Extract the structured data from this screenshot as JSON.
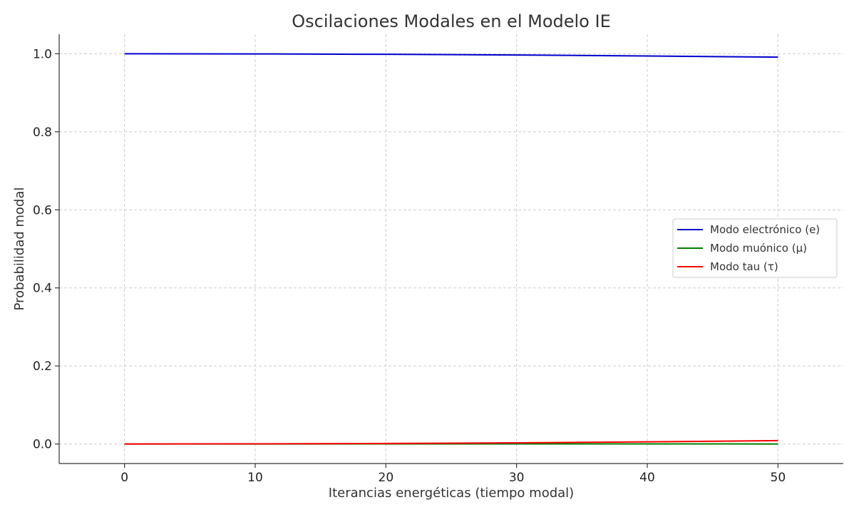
{
  "chart_data": {
    "type": "line",
    "title": "Oscilaciones Modales en el Modelo IE",
    "xlabel": "Iterancias energéticas (tiempo modal)",
    "ylabel": "Probabilidad modal",
    "xlim": [
      -5,
      55
    ],
    "ylim": [
      -0.05,
      1.05
    ],
    "xticks": [
      0,
      10,
      20,
      30,
      40,
      50
    ],
    "yticks": [
      0.0,
      0.2,
      0.4,
      0.6,
      0.8,
      1.0
    ],
    "xtick_labels": [
      "0",
      "10",
      "20",
      "30",
      "40",
      "50"
    ],
    "ytick_labels": [
      "0.0",
      "0.2",
      "0.4",
      "0.6",
      "0.8",
      "1.0"
    ],
    "grid": true,
    "legend_position": "center-right",
    "series": [
      {
        "name": "Modo electrónico (e)",
        "color": "#0000cc",
        "x": [
          0,
          10,
          20,
          30,
          40,
          50
        ],
        "y": [
          1.0,
          0.9996,
          0.9985,
          0.9968,
          0.9943,
          0.9913
        ]
      },
      {
        "name": "Modo muónico (μ)",
        "color": "#008000",
        "x": [
          0,
          10,
          20,
          30,
          40,
          50
        ],
        "y": [
          0.0,
          0.0001,
          0.0002,
          0.0002,
          0.0002,
          0.0001
        ]
      },
      {
        "name": "Modo tau (τ)",
        "color": "#ff0000",
        "x": [
          0,
          10,
          20,
          30,
          40,
          50
        ],
        "y": [
          0.0,
          0.0004,
          0.0013,
          0.003,
          0.0055,
          0.0086
        ]
      }
    ]
  }
}
